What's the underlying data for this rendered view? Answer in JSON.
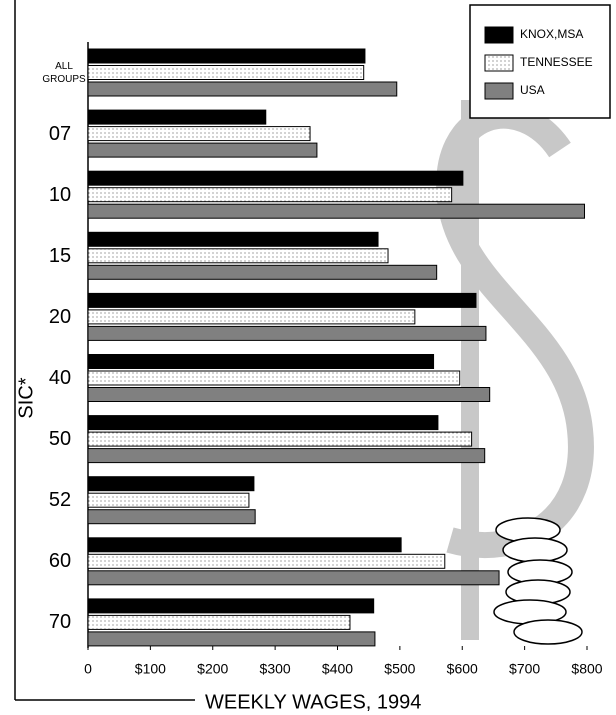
{
  "chart_data": {
    "type": "bar",
    "orientation": "horizontal",
    "x_label": "WEEKLY WAGES, 1994",
    "y_label": "SIC*",
    "categories": [
      "ALL GROUPS",
      "07",
      "10",
      "15",
      "20",
      "40",
      "50",
      "52",
      "60",
      "70"
    ],
    "series": [
      {
        "name": "KNOX,MSA",
        "color": "#000000",
        "values": [
          444,
          285,
          601,
          465,
          622,
          554,
          561,
          266,
          502,
          458
        ]
      },
      {
        "name": "TENNESSEE",
        "color": "#ffffff",
        "pattern": "dotted",
        "values": [
          442,
          356,
          583,
          481,
          524,
          596,
          615,
          258,
          572,
          420
        ]
      },
      {
        "name": "USA",
        "color": "#808080",
        "values": [
          495,
          367,
          796,
          559,
          638,
          644,
          636,
          268,
          659,
          460
        ]
      }
    ],
    "xlim": [
      0,
      800
    ],
    "xticks": [
      0,
      {
        "value": 100,
        "label": "$100"
      },
      {
        "value": 200,
        "label": "$200"
      },
      {
        "value": 300,
        "label": "$300"
      },
      {
        "value": 400,
        "label": "$400"
      },
      {
        "value": 500,
        "label": "$500"
      },
      {
        "value": 600,
        "label": "$600"
      },
      {
        "value": 700,
        "label": "$700"
      },
      {
        "value": 800,
        "label": "$800"
      }
    ],
    "legend": "top-right"
  }
}
